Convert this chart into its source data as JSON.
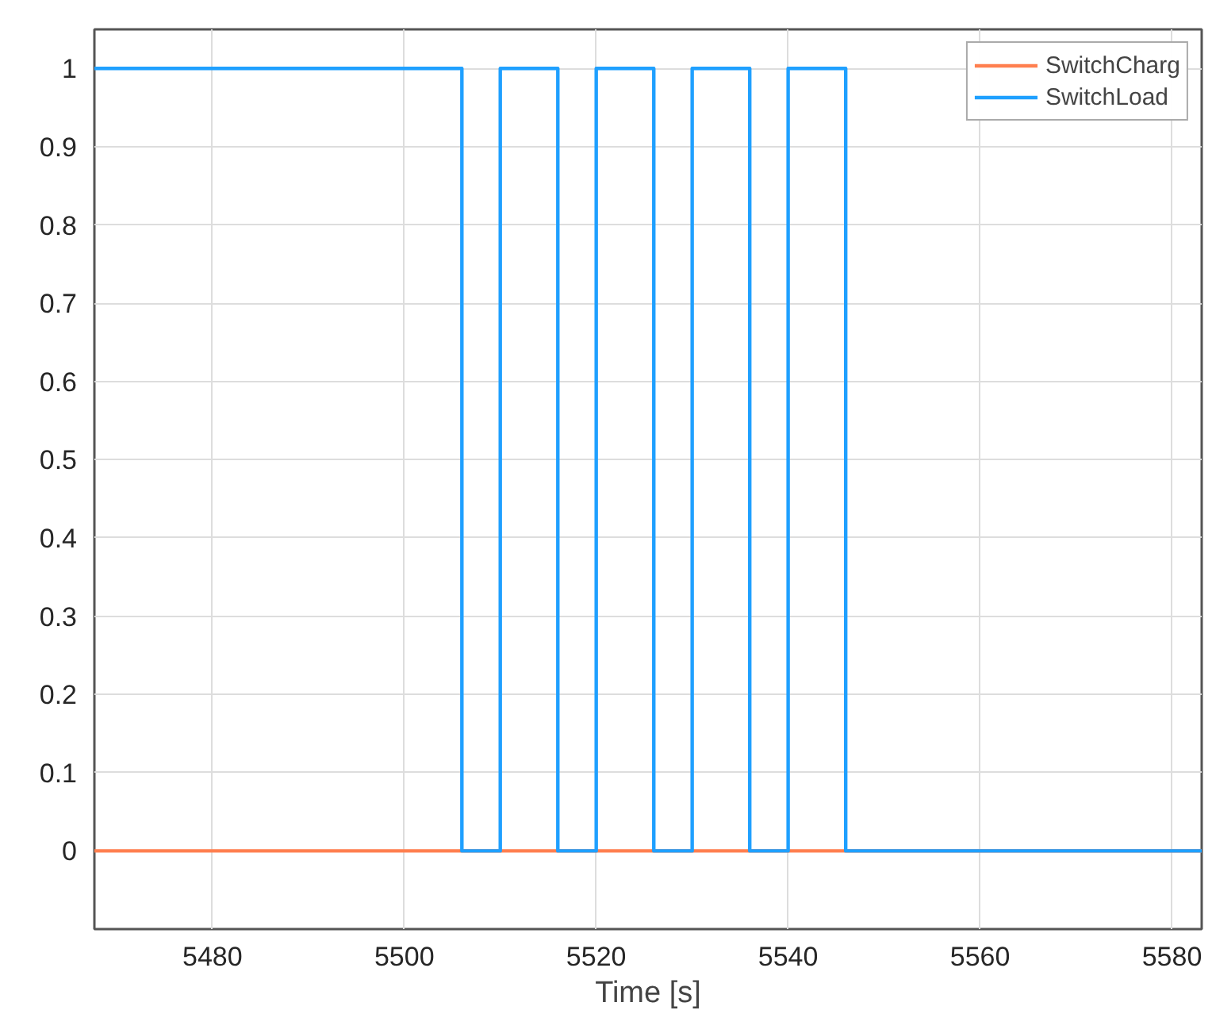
{
  "chart_data": {
    "type": "step",
    "xlabel": "Time [s]",
    "xlim": [
      5467.7,
      5583.1
    ],
    "xticks": [
      5480,
      5500,
      5520,
      5540,
      5560,
      5580
    ],
    "ylim": [
      -0.1,
      1.05
    ],
    "yticks": [
      0,
      0.1,
      0.2,
      0.3,
      0.4,
      0.5,
      0.6,
      0.7,
      0.8,
      0.9,
      1
    ],
    "grid": true,
    "legend": "top right",
    "line_style": "solid",
    "series": [
      {
        "name": "SwitchCharg",
        "color": "#ff7f4f",
        "x": [
          5467.7,
          5583.1
        ],
        "values": [
          0,
          0
        ]
      },
      {
        "name": "SwitchLoad",
        "color": "#1fa0ff",
        "x": [
          5467.7,
          5506,
          5510,
          5516,
          5520,
          5526,
          5530,
          5536,
          5540,
          5546,
          5583.1
        ],
        "values": [
          1,
          0,
          1,
          0,
          1,
          0,
          1,
          0,
          1,
          0,
          0
        ]
      }
    ]
  }
}
